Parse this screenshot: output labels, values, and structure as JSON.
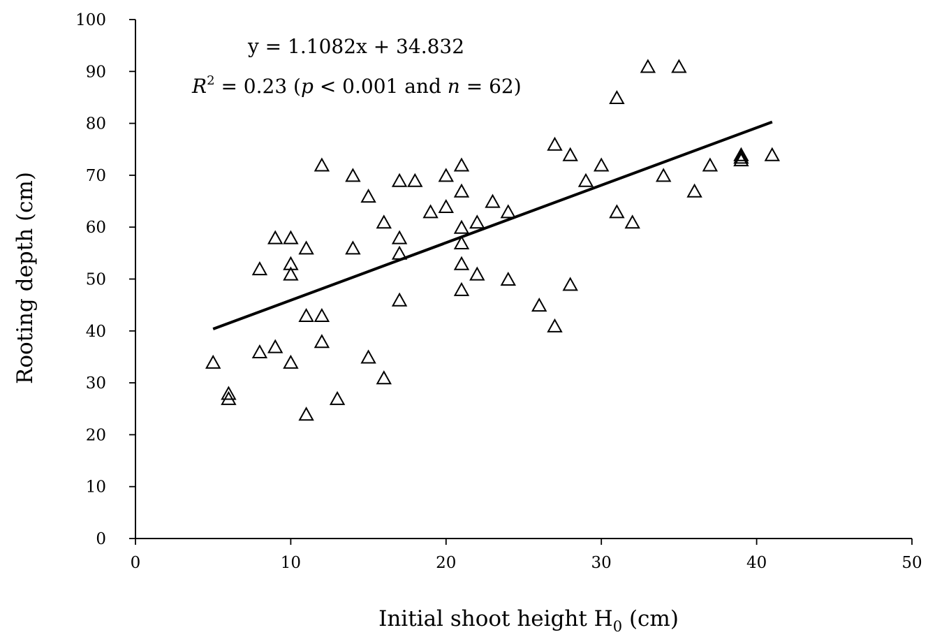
{
  "chart_data": {
    "type": "scatter",
    "xlabel": "Initial shoot height H",
    "xlabel_subscript": "0",
    "xlabel_unit": " (cm)",
    "ylabel": "Rooting depth (cm)",
    "xlim": [
      0,
      50
    ],
    "ylim": [
      0,
      100
    ],
    "xticks": [
      0,
      10,
      20,
      30,
      40,
      50
    ],
    "yticks": [
      0,
      10,
      20,
      30,
      40,
      50,
      60,
      70,
      80,
      90,
      100
    ],
    "grid": false,
    "marker": "open-triangle",
    "marker_color": "#000000",
    "annotations": {
      "equation": "y = 1.1082x + 34.832",
      "r2_symbol": "R",
      "r2_sup": "2",
      "r2_value": " = 0.23 (",
      "p_symbol": "p",
      "p_text": " < 0.001 and ",
      "n_symbol": "n",
      "n_text": " = 62)"
    },
    "trendline": {
      "slope": 1.1082,
      "intercept": 34.832,
      "x_start": 5,
      "x_end": 41
    },
    "points": [
      [
        5,
        34
      ],
      [
        6,
        28
      ],
      [
        6,
        27
      ],
      [
        8,
        52
      ],
      [
        8,
        36
      ],
      [
        9,
        58
      ],
      [
        9,
        37
      ],
      [
        10,
        58
      ],
      [
        10,
        53
      ],
      [
        10,
        51
      ],
      [
        10,
        34
      ],
      [
        11,
        56
      ],
      [
        11,
        43
      ],
      [
        11,
        24
      ],
      [
        12,
        72
      ],
      [
        12,
        43
      ],
      [
        12,
        38
      ],
      [
        13,
        27
      ],
      [
        14,
        70
      ],
      [
        14,
        56
      ],
      [
        15,
        66
      ],
      [
        15,
        35
      ],
      [
        16,
        61
      ],
      [
        16,
        31
      ],
      [
        17,
        69
      ],
      [
        17,
        58
      ],
      [
        17,
        55
      ],
      [
        17,
        46
      ],
      [
        18,
        69
      ],
      [
        19,
        63
      ],
      [
        20,
        70
      ],
      [
        20,
        64
      ],
      [
        21,
        72
      ],
      [
        21,
        67
      ],
      [
        21,
        60
      ],
      [
        21,
        57
      ],
      [
        21,
        53
      ],
      [
        21,
        48
      ],
      [
        22,
        61
      ],
      [
        22,
        51
      ],
      [
        23,
        65
      ],
      [
        24,
        63
      ],
      [
        24,
        50
      ],
      [
        26,
        45
      ],
      [
        27,
        76
      ],
      [
        27,
        41
      ],
      [
        28,
        74
      ],
      [
        28,
        49
      ],
      [
        29,
        69
      ],
      [
        30,
        72
      ],
      [
        31,
        85
      ],
      [
        31,
        63
      ],
      [
        32,
        61
      ],
      [
        33,
        91
      ],
      [
        34,
        70
      ],
      [
        35,
        91
      ],
      [
        36,
        67
      ],
      [
        37,
        72
      ],
      [
        39,
        74
      ],
      [
        39,
        73
      ],
      [
        41,
        74
      ],
      [
        39,
        73.5
      ]
    ]
  }
}
